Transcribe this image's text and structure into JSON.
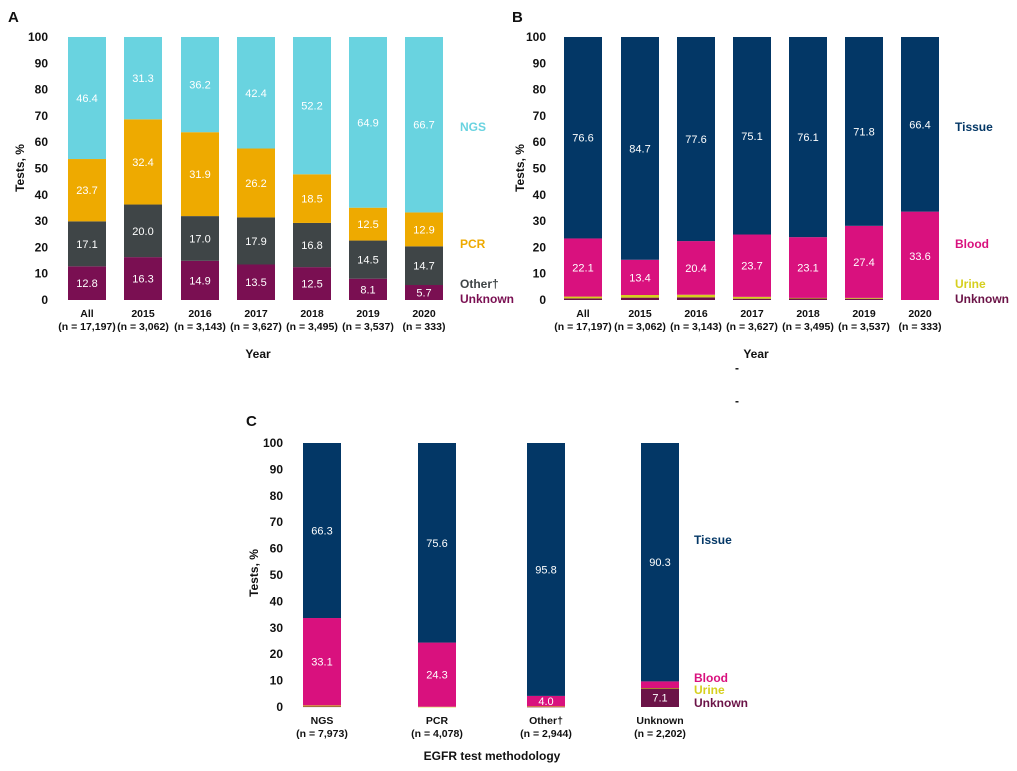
{
  "colors": {
    "ngs": "#69D3E0",
    "pcr": "#EEAA00",
    "other": "#3F4547",
    "unknown_method": "#7A0F52",
    "tissue": "#033766",
    "blood": "#D9117E",
    "urine": "#D6CF1E",
    "unknown_sample": "#6B1347",
    "label_light": "#ffffff"
  },
  "chart_data": [
    {
      "panel": "A",
      "type": "bar",
      "stacked": true,
      "ylabel": "Tests, %",
      "xlabel": "Year",
      "ylim": [
        0,
        100
      ],
      "yticks": [
        0,
        10,
        20,
        30,
        40,
        50,
        60,
        70,
        80,
        90,
        100
      ],
      "categories": [
        {
          "name": "All",
          "n": "(n = 17,197)"
        },
        {
          "name": "2015",
          "n": "(n = 3,062)"
        },
        {
          "name": "2016",
          "n": "(n = 3,143)"
        },
        {
          "name": "2017",
          "n": "(n = 3,627)"
        },
        {
          "name": "2018",
          "n": "(n = 3,495)"
        },
        {
          "name": "2019",
          "n": "(n = 3,537)"
        },
        {
          "name": "2020",
          "n": "(n = 333)"
        }
      ],
      "series": [
        {
          "name": "Unknown",
          "legend": "Unknown",
          "color_key": "unknown_method",
          "values": [
            12.8,
            16.3,
            14.9,
            13.5,
            12.5,
            8.1,
            5.7
          ],
          "show_labels": true
        },
        {
          "name": "Other",
          "legend": "Other†",
          "color_key": "other",
          "values": [
            17.1,
            20.0,
            17.0,
            17.9,
            16.8,
            14.5,
            14.7
          ],
          "show_labels": true
        },
        {
          "name": "PCR",
          "legend": "PCR",
          "color_key": "pcr",
          "values": [
            23.7,
            32.4,
            31.9,
            26.2,
            18.5,
            12.5,
            12.9
          ],
          "show_labels": true
        },
        {
          "name": "NGS",
          "legend": "NGS",
          "color_key": "ngs",
          "values": [
            46.4,
            31.3,
            36.2,
            42.4,
            52.2,
            64.9,
            66.7
          ],
          "show_labels": true
        }
      ]
    },
    {
      "panel": "B",
      "type": "bar",
      "stacked": true,
      "ylabel": "Tests, %",
      "xlabel": "Year",
      "ylim": [
        0,
        100
      ],
      "yticks": [
        0,
        10,
        20,
        30,
        40,
        50,
        60,
        70,
        80,
        90,
        100
      ],
      "categories": [
        {
          "name": "All",
          "n": "(n = 17,197)"
        },
        {
          "name": "2015",
          "n": "(n = 3,062)"
        },
        {
          "name": "2016",
          "n": "(n = 3,143)"
        },
        {
          "name": "2017",
          "n": "(n = 3,627)"
        },
        {
          "name": "2018",
          "n": "(n = 3,495)"
        },
        {
          "name": "2019",
          "n": "(n = 3,537)"
        },
        {
          "name": "2020",
          "n": "(n = 333)"
        }
      ],
      "series": [
        {
          "name": "Unknown",
          "legend": "Unknown",
          "color_key": "unknown_sample",
          "values": [
            0.6,
            0.9,
            1.0,
            0.5,
            0.6,
            0.5,
            0.0
          ],
          "show_labels": false
        },
        {
          "name": "Urine",
          "legend": "Urine",
          "color_key": "urine",
          "values": [
            0.7,
            1.0,
            1.0,
            0.7,
            0.2,
            0.3,
            0.0
          ],
          "show_labels": false
        },
        {
          "name": "Blood",
          "legend": "Blood",
          "color_key": "blood",
          "values": [
            22.1,
            13.4,
            20.4,
            23.7,
            23.1,
            27.4,
            33.6
          ],
          "show_labels": true
        },
        {
          "name": "Tissue",
          "legend": "Tissue",
          "color_key": "tissue",
          "values": [
            76.6,
            84.7,
            77.6,
            75.1,
            76.1,
            71.8,
            66.4
          ],
          "show_labels": true
        }
      ],
      "stray_marks": [
        "-",
        "-"
      ]
    },
    {
      "panel": "C",
      "type": "bar",
      "stacked": true,
      "ylabel": "Tests, %",
      "xlabel": "EGFR test methodology",
      "ylim": [
        0,
        100
      ],
      "yticks": [
        0,
        10,
        20,
        30,
        40,
        50,
        60,
        70,
        80,
        90,
        100
      ],
      "categories": [
        {
          "name": "NGS",
          "n": "(n = 7,973)"
        },
        {
          "name": "PCR",
          "n": "(n = 4,078)"
        },
        {
          "name": "Other†",
          "n": "(n = 2,944)"
        },
        {
          "name": "Unknown",
          "n": "(n = 2,202)"
        }
      ],
      "series": [
        {
          "name": "Unknown",
          "legend": "Unknown",
          "color_key": "unknown_sample",
          "values": [
            0.2,
            0.0,
            0.1,
            7.1
          ],
          "show_labels": [
            false,
            false,
            false,
            true
          ]
        },
        {
          "name": "Urine",
          "legend": "Urine",
          "color_key": "urine",
          "values": [
            0.4,
            0.1,
            0.1,
            0.1
          ],
          "show_labels": false
        },
        {
          "name": "Blood",
          "legend": "Blood",
          "color_key": "blood",
          "values": [
            33.1,
            24.3,
            4.0,
            2.5
          ],
          "show_labels": [
            true,
            true,
            true,
            false
          ]
        },
        {
          "name": "Tissue",
          "legend": "Tissue",
          "color_key": "tissue",
          "values": [
            66.3,
            75.6,
            95.8,
            90.3
          ],
          "show_labels": true
        }
      ]
    }
  ]
}
